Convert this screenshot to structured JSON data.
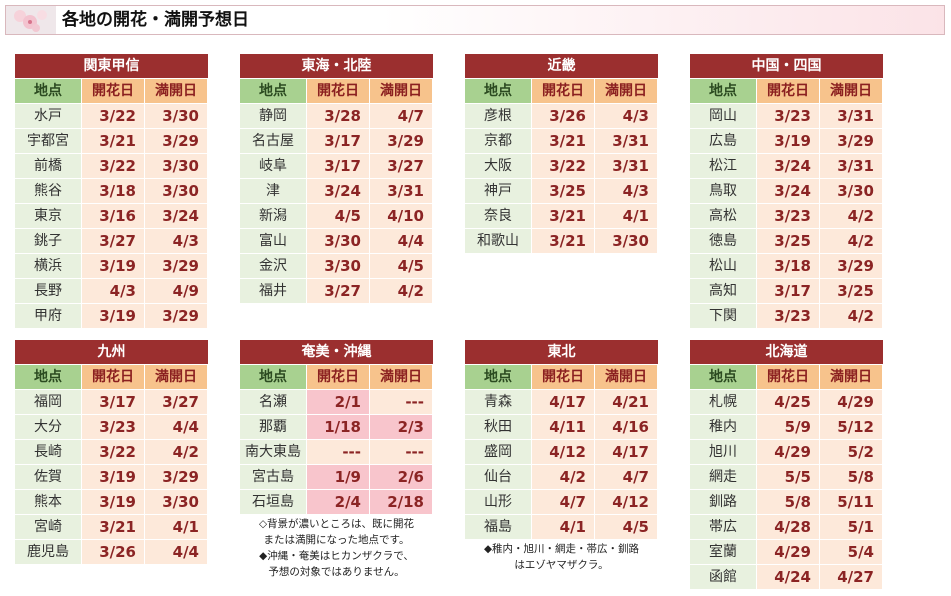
{
  "header": {
    "title": "各地の開花・満開予想日"
  },
  "columns": [
    "地点",
    "開花日",
    "満開日"
  ],
  "regions": [
    {
      "name": "関東甲信",
      "rows": [
        [
          "水戸",
          "3/22",
          "3/30"
        ],
        [
          "宇都宮",
          "3/21",
          "3/29"
        ],
        [
          "前橋",
          "3/22",
          "3/30"
        ],
        [
          "熊谷",
          "3/18",
          "3/30"
        ],
        [
          "東京",
          "3/16",
          "3/24"
        ],
        [
          "銚子",
          "3/27",
          "4/3"
        ],
        [
          "横浜",
          "3/19",
          "3/29"
        ],
        [
          "長野",
          "4/3",
          "4/9"
        ],
        [
          "甲府",
          "3/19",
          "3/29"
        ]
      ]
    },
    {
      "name": "東海・北陸",
      "rows": [
        [
          "静岡",
          "3/28",
          "4/7"
        ],
        [
          "名古屋",
          "3/17",
          "3/29"
        ],
        [
          "岐阜",
          "3/17",
          "3/27"
        ],
        [
          "津",
          "3/24",
          "3/31"
        ],
        [
          "新潟",
          "4/5",
          "4/10"
        ],
        [
          "富山",
          "3/30",
          "4/4"
        ],
        [
          "金沢",
          "3/30",
          "4/5"
        ],
        [
          "福井",
          "3/27",
          "4/2"
        ]
      ]
    },
    {
      "name": "近畿",
      "rows": [
        [
          "彦根",
          "3/26",
          "4/3"
        ],
        [
          "京都",
          "3/21",
          "3/31"
        ],
        [
          "大阪",
          "3/22",
          "3/31"
        ],
        [
          "神戸",
          "3/25",
          "4/3"
        ],
        [
          "奈良",
          "3/21",
          "4/1"
        ],
        [
          "和歌山",
          "3/21",
          "3/30"
        ]
      ]
    },
    {
      "name": "中国・四国",
      "rows": [
        [
          "岡山",
          "3/23",
          "3/31"
        ],
        [
          "広島",
          "3/19",
          "3/29"
        ],
        [
          "松江",
          "3/24",
          "3/31"
        ],
        [
          "鳥取",
          "3/24",
          "3/30"
        ],
        [
          "高松",
          "3/23",
          "4/2"
        ],
        [
          "徳島",
          "3/25",
          "4/2"
        ],
        [
          "松山",
          "3/18",
          "3/29"
        ],
        [
          "高知",
          "3/17",
          "3/25"
        ],
        [
          "下関",
          "3/23",
          "4/2"
        ]
      ]
    },
    {
      "name": "九州",
      "rows": [
        [
          "福岡",
          "3/17",
          "3/27"
        ],
        [
          "大分",
          "3/23",
          "4/4"
        ],
        [
          "長崎",
          "3/22",
          "4/2"
        ],
        [
          "佐賀",
          "3/19",
          "3/29"
        ],
        [
          "熊本",
          "3/19",
          "3/30"
        ],
        [
          "宮崎",
          "3/21",
          "4/1"
        ],
        [
          "鹿児島",
          "3/26",
          "4/4"
        ]
      ]
    },
    {
      "name": "奄美・沖縄",
      "rows": [
        [
          "名瀬",
          "2/1",
          "---"
        ],
        [
          "那覇",
          "1/18",
          "2/3"
        ],
        [
          "南大東島",
          "---",
          "---"
        ],
        [
          "宮古島",
          "1/9",
          "2/6"
        ],
        [
          "石垣島",
          "2/4",
          "2/18"
        ]
      ],
      "shaded": [
        [
          false,
          true,
          false
        ],
        [
          false,
          true,
          true
        ],
        [
          false,
          false,
          false
        ],
        [
          false,
          true,
          true
        ],
        [
          false,
          true,
          true
        ]
      ],
      "notes": [
        "◇背景が濃いところは、既に開花",
        "または満開になった地点です。",
        "◆沖縄・奄美はヒカンザクラで、",
        "予想の対象ではありません。"
      ]
    },
    {
      "name": "東北",
      "rows": [
        [
          "青森",
          "4/17",
          "4/21"
        ],
        [
          "秋田",
          "4/11",
          "4/16"
        ],
        [
          "盛岡",
          "4/12",
          "4/17"
        ],
        [
          "仙台",
          "4/2",
          "4/7"
        ],
        [
          "山形",
          "4/7",
          "4/12"
        ],
        [
          "福島",
          "4/1",
          "4/5"
        ]
      ],
      "notes": [
        "◆稚内・旭川・網走・帯広・釧路",
        "はエゾヤマザクラ。"
      ]
    },
    {
      "name": "北海道",
      "rows": [
        [
          "札幌",
          "4/25",
          "4/29"
        ],
        [
          "稚内",
          "5/9",
          "5/12"
        ],
        [
          "旭川",
          "4/29",
          "5/2"
        ],
        [
          "網走",
          "5/5",
          "5/8"
        ],
        [
          "釧路",
          "5/8",
          "5/11"
        ],
        [
          "帯広",
          "4/28",
          "5/1"
        ],
        [
          "室蘭",
          "4/29",
          "5/4"
        ],
        [
          "函館",
          "4/24",
          "4/27"
        ]
      ]
    }
  ]
}
